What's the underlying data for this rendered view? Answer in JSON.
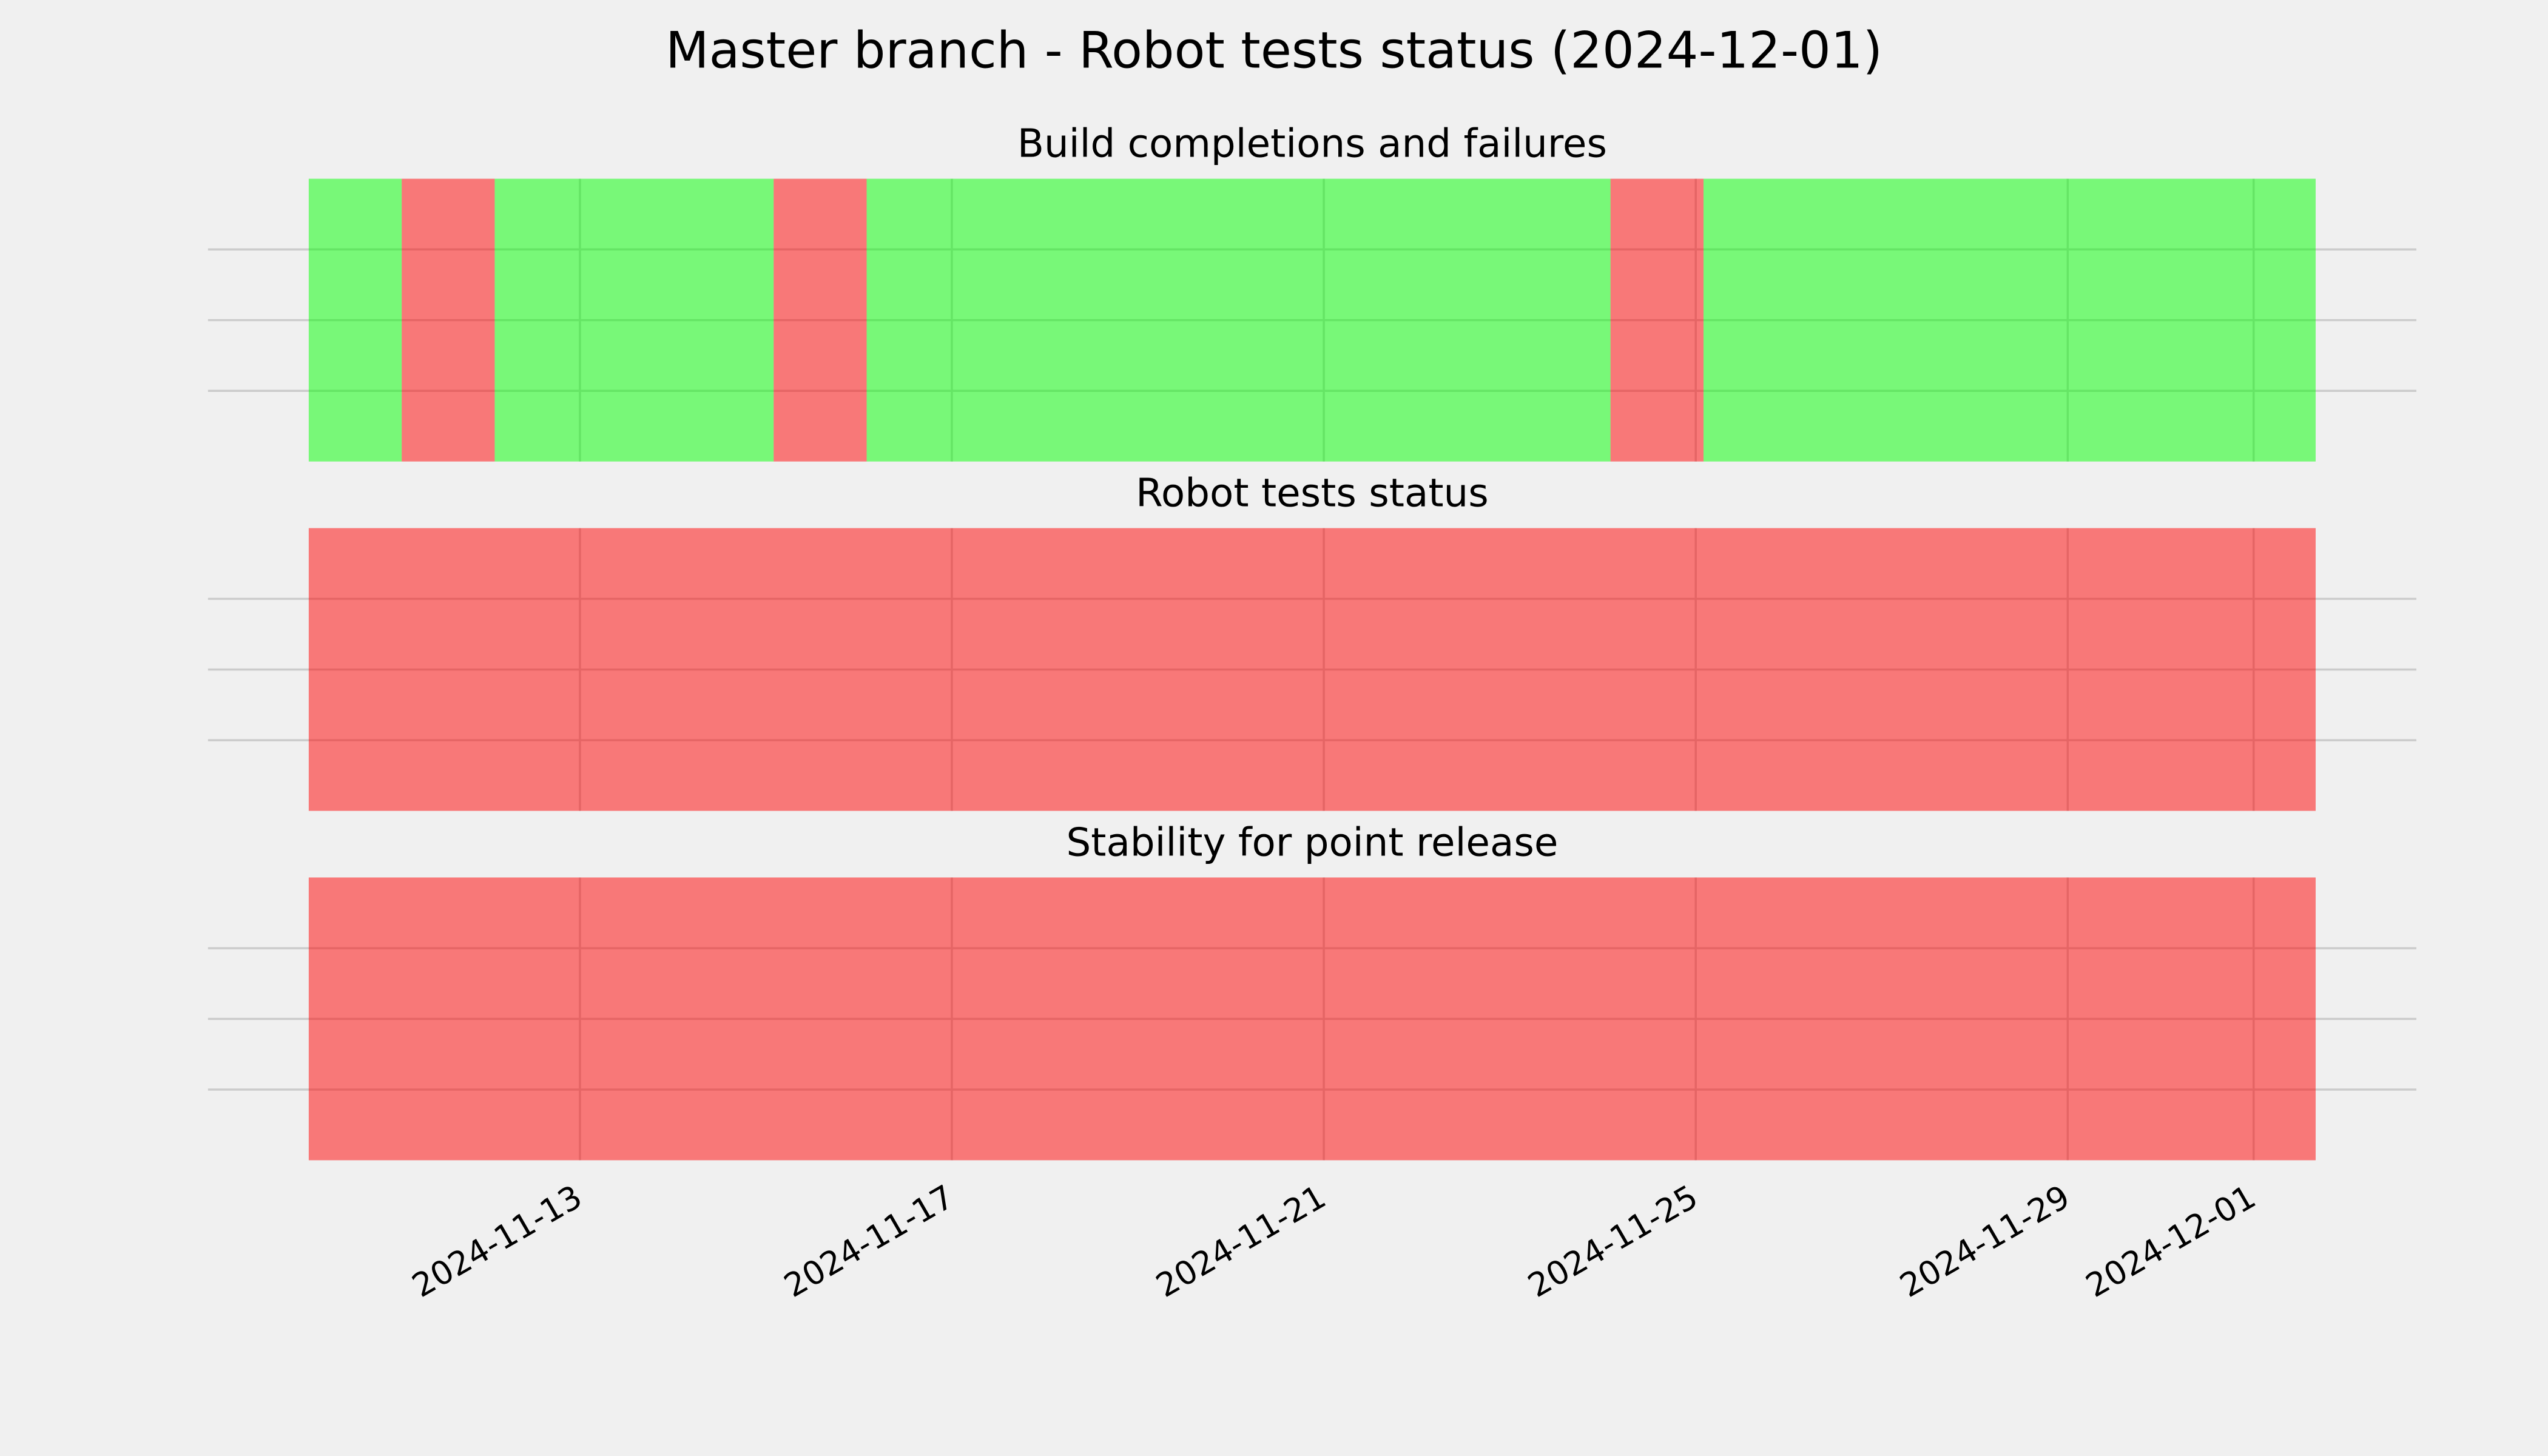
{
  "chart_data": {
    "type": "timeline",
    "title": "Master branch - Robot tests status (2024-12-01)",
    "xlim": [
      "2024-11-09",
      "2024-12-02T18:00"
    ],
    "xticks": [
      "2024-11-13",
      "2024-11-17",
      "2024-11-21",
      "2024-11-25",
      "2024-11-29",
      "2024-12-01"
    ],
    "ylim": [
      0,
      1
    ],
    "yticks": [
      0.25,
      0.5,
      0.75
    ],
    "grid": true,
    "alpha": 0.5,
    "panels": [
      {
        "title": "Build completions and failures",
        "segments": [
          {
            "start": "2024-11-10T02:00",
            "end": "2024-11-11T02:00",
            "color": "#00ff00"
          },
          {
            "start": "2024-11-11T02:00",
            "end": "2024-11-12T02:00",
            "color": "#ff0000"
          },
          {
            "start": "2024-11-12T02:00",
            "end": "2024-11-15T02:00",
            "color": "#00ff00"
          },
          {
            "start": "2024-11-15T02:00",
            "end": "2024-11-16T02:00",
            "color": "#ff0000"
          },
          {
            "start": "2024-11-16T02:00",
            "end": "2024-11-24T02:00",
            "color": "#00ff00"
          },
          {
            "start": "2024-11-24T02:00",
            "end": "2024-11-25T02:00",
            "color": "#ff0000"
          },
          {
            "start": "2024-11-25T02:00",
            "end": "2024-12-01T16:00",
            "color": "#00ff00"
          }
        ]
      },
      {
        "title": "Robot tests status",
        "segments": [
          {
            "start": "2024-11-10T02:00",
            "end": "2024-12-01T16:00",
            "color": "#ff0000"
          }
        ]
      },
      {
        "title": "Stability for point release",
        "segments": [
          {
            "start": "2024-11-10T02:00",
            "end": "2024-12-01T16:00",
            "color": "#ff0000"
          }
        ]
      }
    ]
  }
}
